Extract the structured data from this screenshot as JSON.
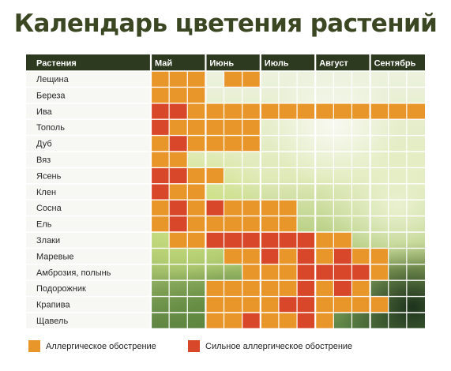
{
  "title": "Календарь цветения растений",
  "colors": {
    "header_bg": "#2e3a20",
    "moderate": "#e8952a",
    "severe": "#d8472a",
    "line": "#ffffff"
  },
  "chart_data": {
    "type": "table",
    "header": "Растения",
    "months": [
      "Май",
      "Июнь",
      "Июль",
      "Август",
      "Сентябрь"
    ],
    "columns_per_month": 3,
    "legend": [
      {
        "key": "moderate",
        "label": "Аллергическое обострение"
      },
      {
        "key": "severe",
        "label": "Сильное аллергическое обострение"
      }
    ],
    "rows": [
      {
        "name": "Лещина",
        "cells": "AAA AA"
      },
      {
        "name": "Береза",
        "cells": "AAA"
      },
      {
        "name": "Ива",
        "cells": "SSAAAAAAAAAAAAA"
      },
      {
        "name": "Тополь",
        "cells": "SAAAAA"
      },
      {
        "name": "Дуб",
        "cells": "ASAAAA"
      },
      {
        "name": "Вяз",
        "cells": "AA"
      },
      {
        "name": "Ясень",
        "cells": "SSAA"
      },
      {
        "name": "Клен",
        "cells": "SAA"
      },
      {
        "name": "Сосна",
        "cells": "ASASAAAA"
      },
      {
        "name": "Ель",
        "cells": "ASAAAAAA"
      },
      {
        "name": "Злаки",
        "cells": " AASSSSSSAA"
      },
      {
        "name": "Маревые",
        "cells": "    AASASASAA"
      },
      {
        "name": "Амброзия, полынь",
        "cells": "     AAASSSSA"
      },
      {
        "name": "Подорожник",
        "cells": "   AAAAASASA"
      },
      {
        "name": "Крапива",
        "cells": "   AAAASSAAAA"
      },
      {
        "name": "Щавель",
        "cells": "   AASAASA"
      }
    ]
  }
}
